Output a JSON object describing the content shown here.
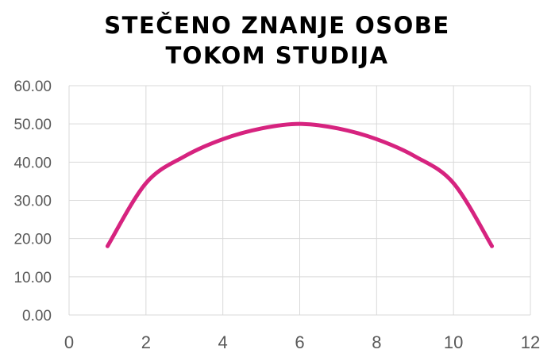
{
  "chart_data": {
    "type": "line",
    "title_lines": [
      "STEČENO ZNANJE OSOBE",
      "TOKOM STUDIJA"
    ],
    "xlabel": "",
    "ylabel": "",
    "xlim": [
      0,
      12
    ],
    "ylim": [
      0,
      60
    ],
    "x_ticks": [
      0,
      2,
      4,
      6,
      8,
      10,
      12
    ],
    "x_tick_labels": [
      "0",
      "2",
      "4",
      "6",
      "8",
      "10",
      "12"
    ],
    "y_ticks": [
      0,
      10,
      20,
      30,
      40,
      50,
      60
    ],
    "y_tick_labels": [
      "0.00",
      "10.00",
      "20.00",
      "30.00",
      "40.00",
      "50.00",
      "60.00"
    ],
    "grid": true,
    "legend": "none",
    "series": [
      {
        "color": "#d6237f",
        "smooth": true,
        "x": [
          1,
          2,
          3,
          4,
          5,
          6,
          7,
          8,
          9,
          10,
          11
        ],
        "y": [
          18,
          34.5,
          41.5,
          46,
          48.8,
          50,
          48.8,
          46,
          41.5,
          34.5,
          18
        ]
      }
    ]
  }
}
